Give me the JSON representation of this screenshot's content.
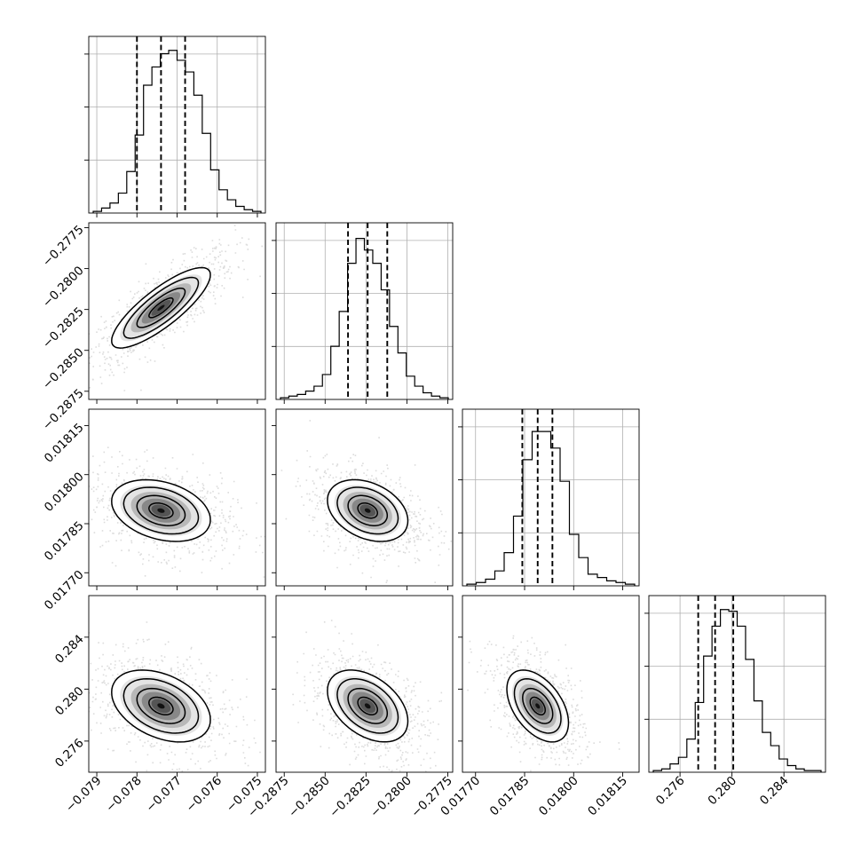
{
  "chart_data": {
    "type": "corner",
    "grid": true,
    "parameters": [
      {
        "center": -0.0774,
        "q16": -0.078,
        "q84": -0.0768,
        "range": [
          -0.0792,
          -0.0748
        ],
        "ticks": [
          -0.079,
          -0.078,
          -0.077,
          -0.076,
          -0.075
        ],
        "tick_labels": [
          "−0.079",
          "−0.078",
          "−0.077",
          "−0.076",
          "−0.075"
        ],
        "hist": [
          0.01,
          0.03,
          0.06,
          0.12,
          0.25,
          0.47,
          0.77,
          0.88,
          0.96,
          0.98,
          0.92,
          0.85,
          0.71,
          0.48,
          0.26,
          0.14,
          0.08,
          0.04,
          0.02,
          0.01
        ]
      },
      {
        "center": -0.2824,
        "q16": -0.2836,
        "q84": -0.2812,
        "range": [
          -0.288,
          -0.2772
        ],
        "ticks": [
          -0.2875,
          -0.285,
          -0.2825,
          -0.28,
          -0.2775
        ],
        "tick_labels": [
          "−0.2875",
          "−0.2850",
          "−0.2825",
          "−0.2800",
          "−0.2775"
        ],
        "hist": [
          0.01,
          0.02,
          0.03,
          0.05,
          0.08,
          0.15,
          0.32,
          0.53,
          0.82,
          0.97,
          0.9,
          0.82,
          0.66,
          0.44,
          0.28,
          0.14,
          0.08,
          0.04,
          0.02,
          0.01
        ]
      },
      {
        "center": 0.01789,
        "q16": 0.017843,
        "q84": 0.017935,
        "range": [
          0.01766,
          0.0182
        ],
        "ticks": [
          0.0177,
          0.01785,
          0.018,
          0.01815
        ],
        "tick_labels": [
          "0.01770",
          "0.01785",
          "0.01800",
          "0.01815"
        ],
        "hist": [
          0.01,
          0.02,
          0.04,
          0.09,
          0.2,
          0.42,
          0.76,
          0.93,
          0.93,
          0.83,
          0.63,
          0.31,
          0.17,
          0.07,
          0.05,
          0.03,
          0.02,
          0.01
        ]
      },
      {
        "center": 0.2787,
        "q16": 0.2774,
        "q84": 0.2801,
        "range": [
          0.2736,
          0.2872
        ],
        "ticks": [
          0.276,
          0.28,
          0.284
        ],
        "tick_labels": [
          "0.276",
          "0.280",
          "0.284"
        ],
        "hist": [
          0.01,
          0.02,
          0.05,
          0.09,
          0.2,
          0.42,
          0.7,
          0.88,
          0.98,
          0.97,
          0.88,
          0.68,
          0.43,
          0.24,
          0.16,
          0.08,
          0.04,
          0.02,
          0.01,
          0.01
        ]
      }
    ],
    "correlations": {
      "1-0": 0.82,
      "2-0": -0.3,
      "2-1": -0.33,
      "3-0": -0.38,
      "3-1": -0.42,
      "3-2": -0.47
    }
  }
}
